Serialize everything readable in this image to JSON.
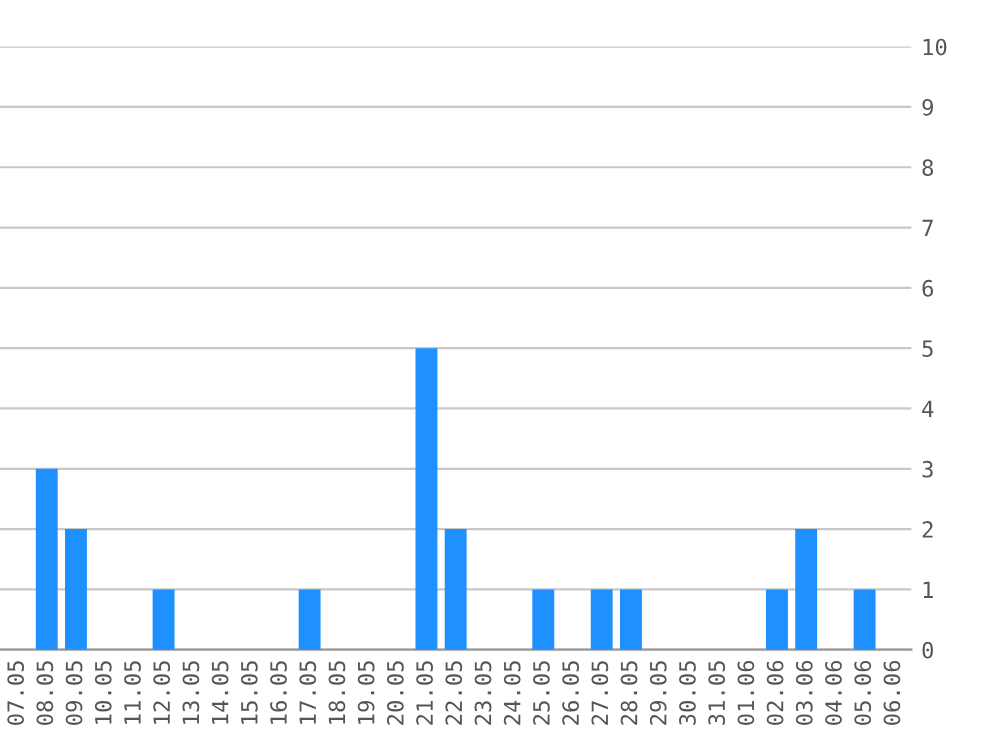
{
  "chart_data": {
    "type": "bar",
    "categories": [
      "07.05",
      "08.05",
      "09.05",
      "10.05",
      "11.05",
      "12.05",
      "13.05",
      "14.05",
      "15.05",
      "16.05",
      "17.05",
      "18.05",
      "19.05",
      "20.05",
      "21.05",
      "22.05",
      "23.05",
      "24.05",
      "25.05",
      "26.05",
      "27.05",
      "28.05",
      "29.05",
      "30.05",
      "31.05",
      "01.06",
      "02.06",
      "03.06",
      "04.06",
      "05.06",
      "06.06"
    ],
    "values": [
      0,
      3,
      2,
      0,
      0,
      1,
      0,
      0,
      0,
      0,
      1,
      0,
      0,
      0,
      5,
      2,
      0,
      0,
      1,
      0,
      1,
      1,
      0,
      0,
      0,
      0,
      1,
      2,
      0,
      1,
      0
    ],
    "color": "#1e90ff",
    "ylim": [
      0,
      10
    ],
    "yticks": [
      0,
      1,
      2,
      3,
      4,
      5,
      6,
      7,
      8,
      9,
      10
    ],
    "grid": "y"
  }
}
